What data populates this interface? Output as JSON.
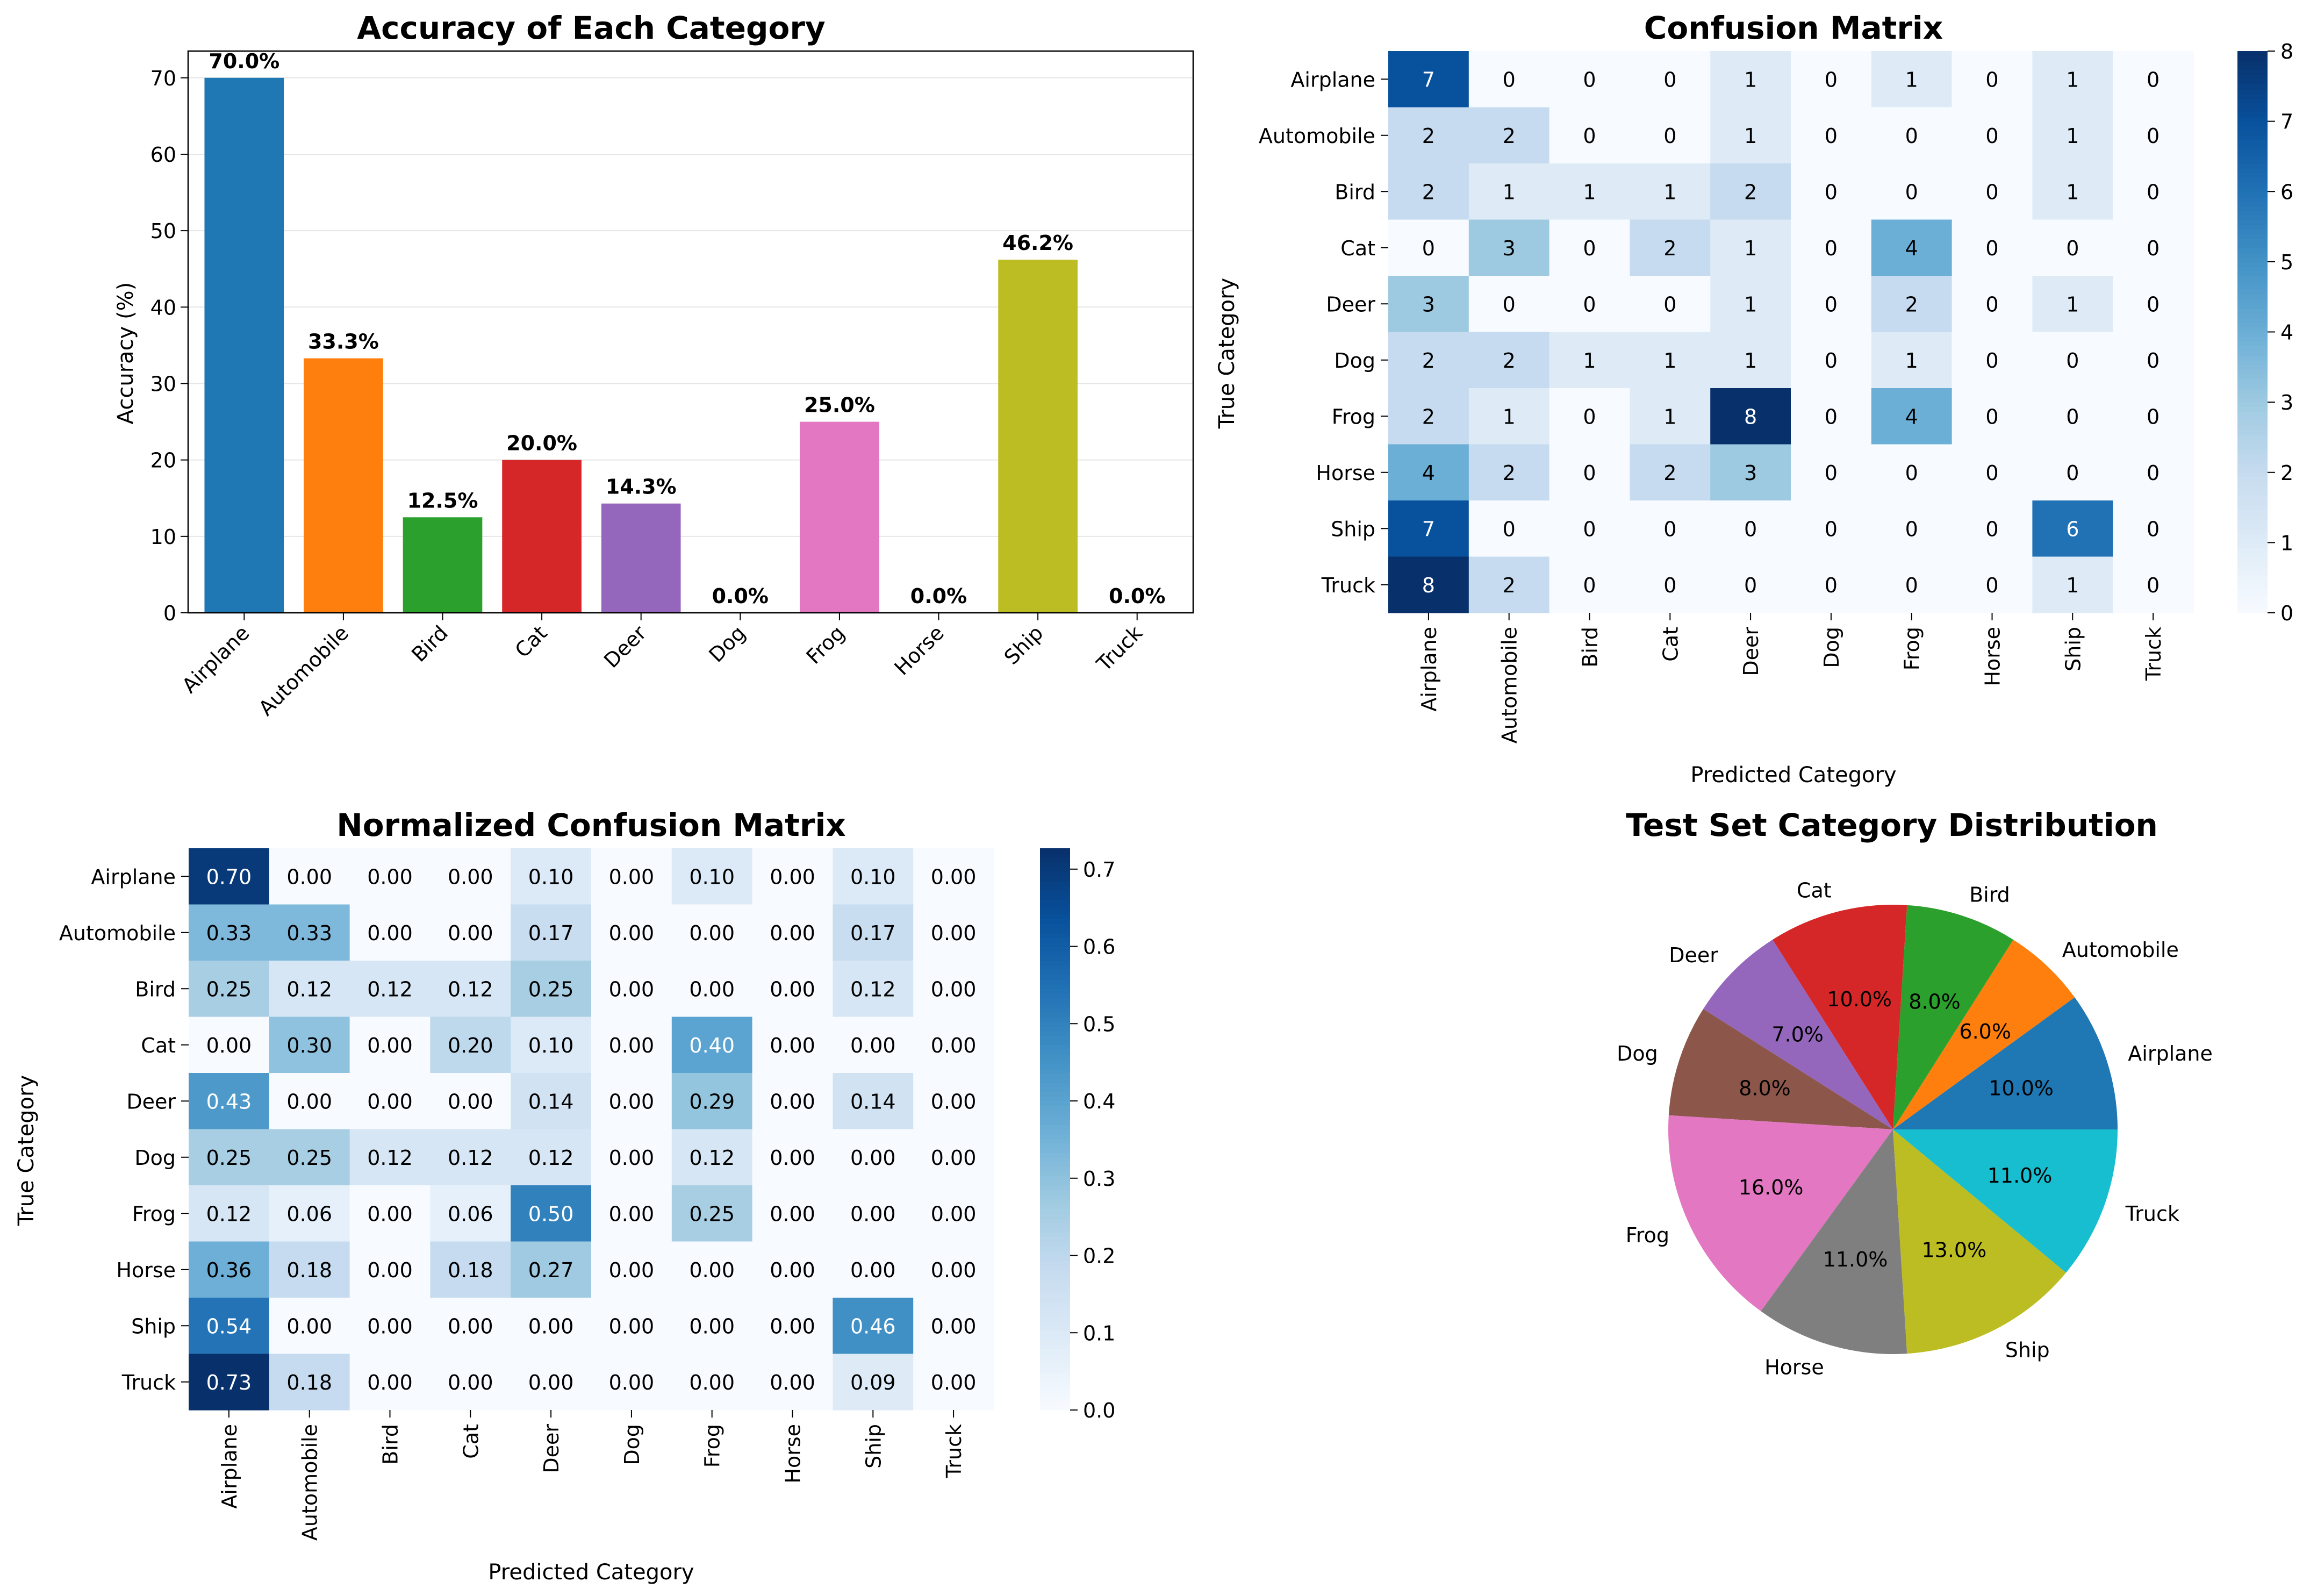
{
  "categories": [
    "Airplane",
    "Automobile",
    "Bird",
    "Cat",
    "Deer",
    "Dog",
    "Frog",
    "Horse",
    "Ship",
    "Truck"
  ],
  "chart_data": [
    {
      "type": "bar",
      "title": "Accuracy of Each Category",
      "xlabel": "",
      "ylabel": "Accuracy (%)",
      "ylim": [
        0,
        73.5
      ],
      "yticks": [
        0,
        10,
        20,
        30,
        40,
        50,
        60,
        70
      ],
      "grid": "horizontal",
      "categories": [
        "Airplane",
        "Automobile",
        "Bird",
        "Cat",
        "Deer",
        "Dog",
        "Frog",
        "Horse",
        "Ship",
        "Truck"
      ],
      "values": [
        70.0,
        33.3,
        12.5,
        20.0,
        14.3,
        0.0,
        25.0,
        0.0,
        46.2,
        0.0
      ],
      "data_labels": [
        "70.0%",
        "33.3%",
        "12.5%",
        "20.0%",
        "14.3%",
        "0.0%",
        "25.0%",
        "0.0%",
        "46.2%",
        "0.0%"
      ],
      "colors": [
        "#1f77b4",
        "#ff7f0e",
        "#2ca02c",
        "#d62728",
        "#9467bd",
        "#8c564b",
        "#e377c2",
        "#7f7f7f",
        "#bcbd22",
        "#17becf"
      ]
    },
    {
      "type": "heatmap",
      "title": "Confusion Matrix",
      "xlabel": "Predicted Category",
      "ylabel": "True Category",
      "colormap": "Blues",
      "vmin": 0,
      "vmax": 8,
      "colorbar_ticks": [
        0,
        1,
        2,
        3,
        4,
        5,
        6,
        7,
        8
      ],
      "x_categories": [
        "Airplane",
        "Automobile",
        "Bird",
        "Cat",
        "Deer",
        "Dog",
        "Frog",
        "Horse",
        "Ship",
        "Truck"
      ],
      "y_categories": [
        "Airplane",
        "Automobile",
        "Bird",
        "Cat",
        "Deer",
        "Dog",
        "Frog",
        "Horse",
        "Ship",
        "Truck"
      ],
      "values": [
        [
          7,
          0,
          0,
          0,
          1,
          0,
          1,
          0,
          1,
          0
        ],
        [
          2,
          2,
          0,
          0,
          1,
          0,
          0,
          0,
          1,
          0
        ],
        [
          2,
          1,
          1,
          1,
          2,
          0,
          0,
          0,
          1,
          0
        ],
        [
          0,
          3,
          0,
          2,
          1,
          0,
          4,
          0,
          0,
          0
        ],
        [
          3,
          0,
          0,
          0,
          1,
          0,
          2,
          0,
          1,
          0
        ],
        [
          2,
          2,
          1,
          1,
          1,
          0,
          1,
          0,
          0,
          0
        ],
        [
          2,
          1,
          0,
          1,
          8,
          0,
          4,
          0,
          0,
          0
        ],
        [
          4,
          2,
          0,
          2,
          3,
          0,
          0,
          0,
          0,
          0
        ],
        [
          7,
          0,
          0,
          0,
          0,
          0,
          0,
          0,
          6,
          0
        ],
        [
          8,
          2,
          0,
          0,
          0,
          0,
          0,
          0,
          1,
          0
        ]
      ]
    },
    {
      "type": "heatmap",
      "title": "Normalized Confusion Matrix",
      "xlabel": "Predicted Category",
      "ylabel": "True Category",
      "colormap": "Blues",
      "vmin": 0,
      "vmax": 0.727,
      "colorbar_ticks": [
        0.0,
        0.1,
        0.2,
        0.3,
        0.4,
        0.5,
        0.6,
        0.7
      ],
      "x_categories": [
        "Airplane",
        "Automobile",
        "Bird",
        "Cat",
        "Deer",
        "Dog",
        "Frog",
        "Horse",
        "Ship",
        "Truck"
      ],
      "y_categories": [
        "Airplane",
        "Automobile",
        "Bird",
        "Cat",
        "Deer",
        "Dog",
        "Frog",
        "Horse",
        "Ship",
        "Truck"
      ],
      "values": [
        [
          0.7,
          0.0,
          0.0,
          0.0,
          0.1,
          0.0,
          0.1,
          0.0,
          0.1,
          0.0
        ],
        [
          0.33,
          0.33,
          0.0,
          0.0,
          0.17,
          0.0,
          0.0,
          0.0,
          0.17,
          0.0
        ],
        [
          0.25,
          0.12,
          0.12,
          0.12,
          0.25,
          0.0,
          0.0,
          0.0,
          0.12,
          0.0
        ],
        [
          0.0,
          0.3,
          0.0,
          0.2,
          0.1,
          0.0,
          0.4,
          0.0,
          0.0,
          0.0
        ],
        [
          0.43,
          0.0,
          0.0,
          0.0,
          0.14,
          0.0,
          0.29,
          0.0,
          0.14,
          0.0
        ],
        [
          0.25,
          0.25,
          0.12,
          0.12,
          0.12,
          0.0,
          0.12,
          0.0,
          0.0,
          0.0
        ],
        [
          0.12,
          0.06,
          0.0,
          0.06,
          0.5,
          0.0,
          0.25,
          0.0,
          0.0,
          0.0
        ],
        [
          0.36,
          0.18,
          0.0,
          0.18,
          0.27,
          0.0,
          0.0,
          0.0,
          0.0,
          0.0
        ],
        [
          0.54,
          0.0,
          0.0,
          0.0,
          0.0,
          0.0,
          0.0,
          0.0,
          0.46,
          0.0
        ],
        [
          0.73,
          0.18,
          0.0,
          0.0,
          0.0,
          0.0,
          0.0,
          0.0,
          0.09,
          0.0
        ]
      ]
    },
    {
      "type": "pie",
      "title": "Test Set Category Distribution",
      "labels": [
        "Airplane",
        "Automobile",
        "Bird",
        "Cat",
        "Deer",
        "Dog",
        "Frog",
        "Horse",
        "Ship",
        "Truck"
      ],
      "values": [
        10.0,
        6.0,
        8.0,
        10.0,
        7.0,
        8.0,
        16.0,
        11.0,
        13.0,
        11.0
      ],
      "pct_labels": [
        "10.0%",
        "6.0%",
        "8.0%",
        "10.0%",
        "7.0%",
        "8.0%",
        "16.0%",
        "11.0%",
        "13.0%",
        "11.0%"
      ],
      "start_angle": 0,
      "direction": "counterclockwise",
      "colors": [
        "#1f77b4",
        "#ff7f0e",
        "#2ca02c",
        "#d62728",
        "#9467bd",
        "#8c564b",
        "#e377c2",
        "#7f7f7f",
        "#bcbd22",
        "#17becf"
      ]
    }
  ]
}
